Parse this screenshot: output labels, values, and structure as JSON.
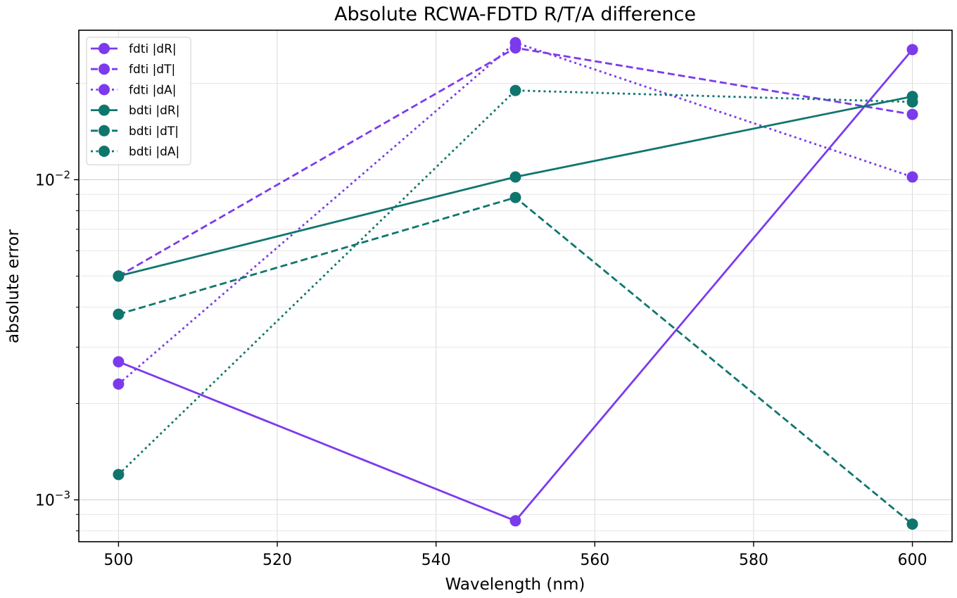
{
  "chart_data": {
    "type": "line",
    "title": "Absolute RCWA-FDTD R/T/A difference",
    "xlabel": "Wavelength (nm)",
    "ylabel": "absolute error",
    "x": [
      500,
      550,
      600
    ],
    "xlim": [
      495,
      605
    ],
    "ylim": [
      0.00074,
      0.0293
    ],
    "yscale": "log",
    "grid": true,
    "legend_position": "top-left",
    "x_ticks": [
      500,
      520,
      540,
      560,
      580,
      600
    ],
    "x_tick_labels": [
      "500",
      "520",
      "540",
      "560",
      "580",
      "600"
    ],
    "y_major_ticks": [
      0.001,
      0.01
    ],
    "y_major_tick_labels": [
      {
        "base": "10",
        "exp": "−3"
      },
      {
        "base": "10",
        "exp": "−2"
      }
    ],
    "y_minor_ticks": [
      0.0008,
      0.0009,
      0.002,
      0.003,
      0.004,
      0.005,
      0.006,
      0.007,
      0.008,
      0.009,
      0.02
    ],
    "series": [
      {
        "name": "fdti |dR|",
        "color": "#7c3aed",
        "dash": "solid",
        "values": [
          0.0027,
          0.00086,
          0.0255
        ]
      },
      {
        "name": "fdti |dT|",
        "color": "#7c3aed",
        "dash": "dashed",
        "values": [
          0.005,
          0.0258,
          0.016
        ]
      },
      {
        "name": "fdti |dA|",
        "color": "#7c3aed",
        "dash": "dotted",
        "values": [
          0.0023,
          0.0268,
          0.0102
        ]
      },
      {
        "name": "bdti |dR|",
        "color": "#0f766e",
        "dash": "solid",
        "values": [
          0.005,
          0.0102,
          0.0182
        ]
      },
      {
        "name": "bdti |dT|",
        "color": "#0f766e",
        "dash": "dashed",
        "values": [
          0.0038,
          0.0088,
          0.00084
        ]
      },
      {
        "name": "bdti |dA|",
        "color": "#0f766e",
        "dash": "dotted",
        "values": [
          0.0012,
          0.019,
          0.0175
        ]
      }
    ]
  }
}
